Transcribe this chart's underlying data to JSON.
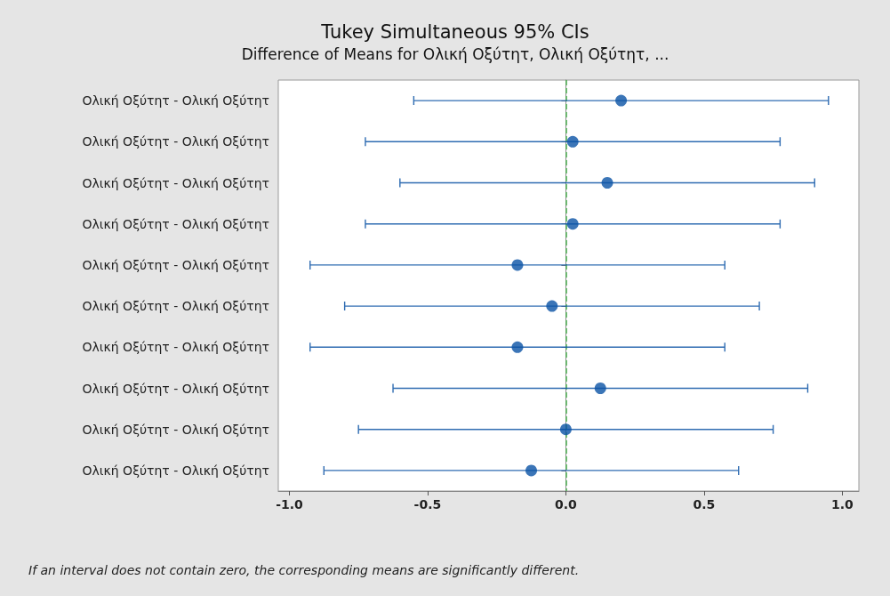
{
  "chart_data": {
    "type": "scatter",
    "title": "Tukey Simultaneous 95% CIs",
    "subtitle": "Difference of Means for Ολική Οξύτητ, Ολική Οξύτητ, ...",
    "orientation": "horizontal",
    "categories": [
      "Ολική Οξύτητ - Ολική Οξύτητ",
      "Ολική Οξύτητ - Ολική Οξύτητ",
      "Ολική Οξύτητ - Ολική Οξύτητ",
      "Ολική Οξύτητ - Ολική Οξύτητ",
      "Ολική Οξύτητ - Ολική Οξύτητ",
      "Ολική Οξύτητ - Ολική Οξύτητ",
      "Ολική Οξύτητ - Ολική Οξύτητ",
      "Ολική Οξύτητ - Ολική Οξύτητ",
      "Ολική Οξύτητ - Ολική Οξύτητ",
      "Ολική Οξύτητ - Ολική Οξύτητ"
    ],
    "values": [
      0.2,
      0.025,
      0.15,
      0.025,
      -0.175,
      -0.05,
      -0.175,
      0.125,
      0,
      -0.125
    ],
    "errors": [
      [
        -0.55,
        0.95
      ],
      [
        -0.725,
        0.775
      ],
      [
        -0.6,
        0.9
      ],
      [
        -0.725,
        0.775
      ],
      [
        -0.925,
        0.575
      ],
      [
        -0.8,
        0.7
      ],
      [
        -0.925,
        0.575
      ],
      [
        -0.625,
        0.875
      ],
      [
        -0.75,
        0.75
      ],
      [
        -0.875,
        0.625
      ]
    ],
    "color": "#0a52a5",
    "marker": "circle",
    "xlim": [
      -1.04,
      1.06
    ],
    "xticks": [
      {
        "value": -1,
        "label": "-1.0"
      },
      {
        "value": -0.5,
        "label": "-0.5"
      },
      {
        "value": 0,
        "label": "0.0"
      },
      {
        "value": 0.5,
        "label": "0.5"
      },
      {
        "value": 1,
        "label": "1.0"
      }
    ],
    "ref_lines": [
      {
        "axis": "x",
        "value": 0,
        "color": "#4caf50",
        "line_style": "dashed"
      }
    ],
    "grid": false,
    "annotations": [
      "If an interval does not contain zero, the corresponding means are significantly different."
    ]
  }
}
